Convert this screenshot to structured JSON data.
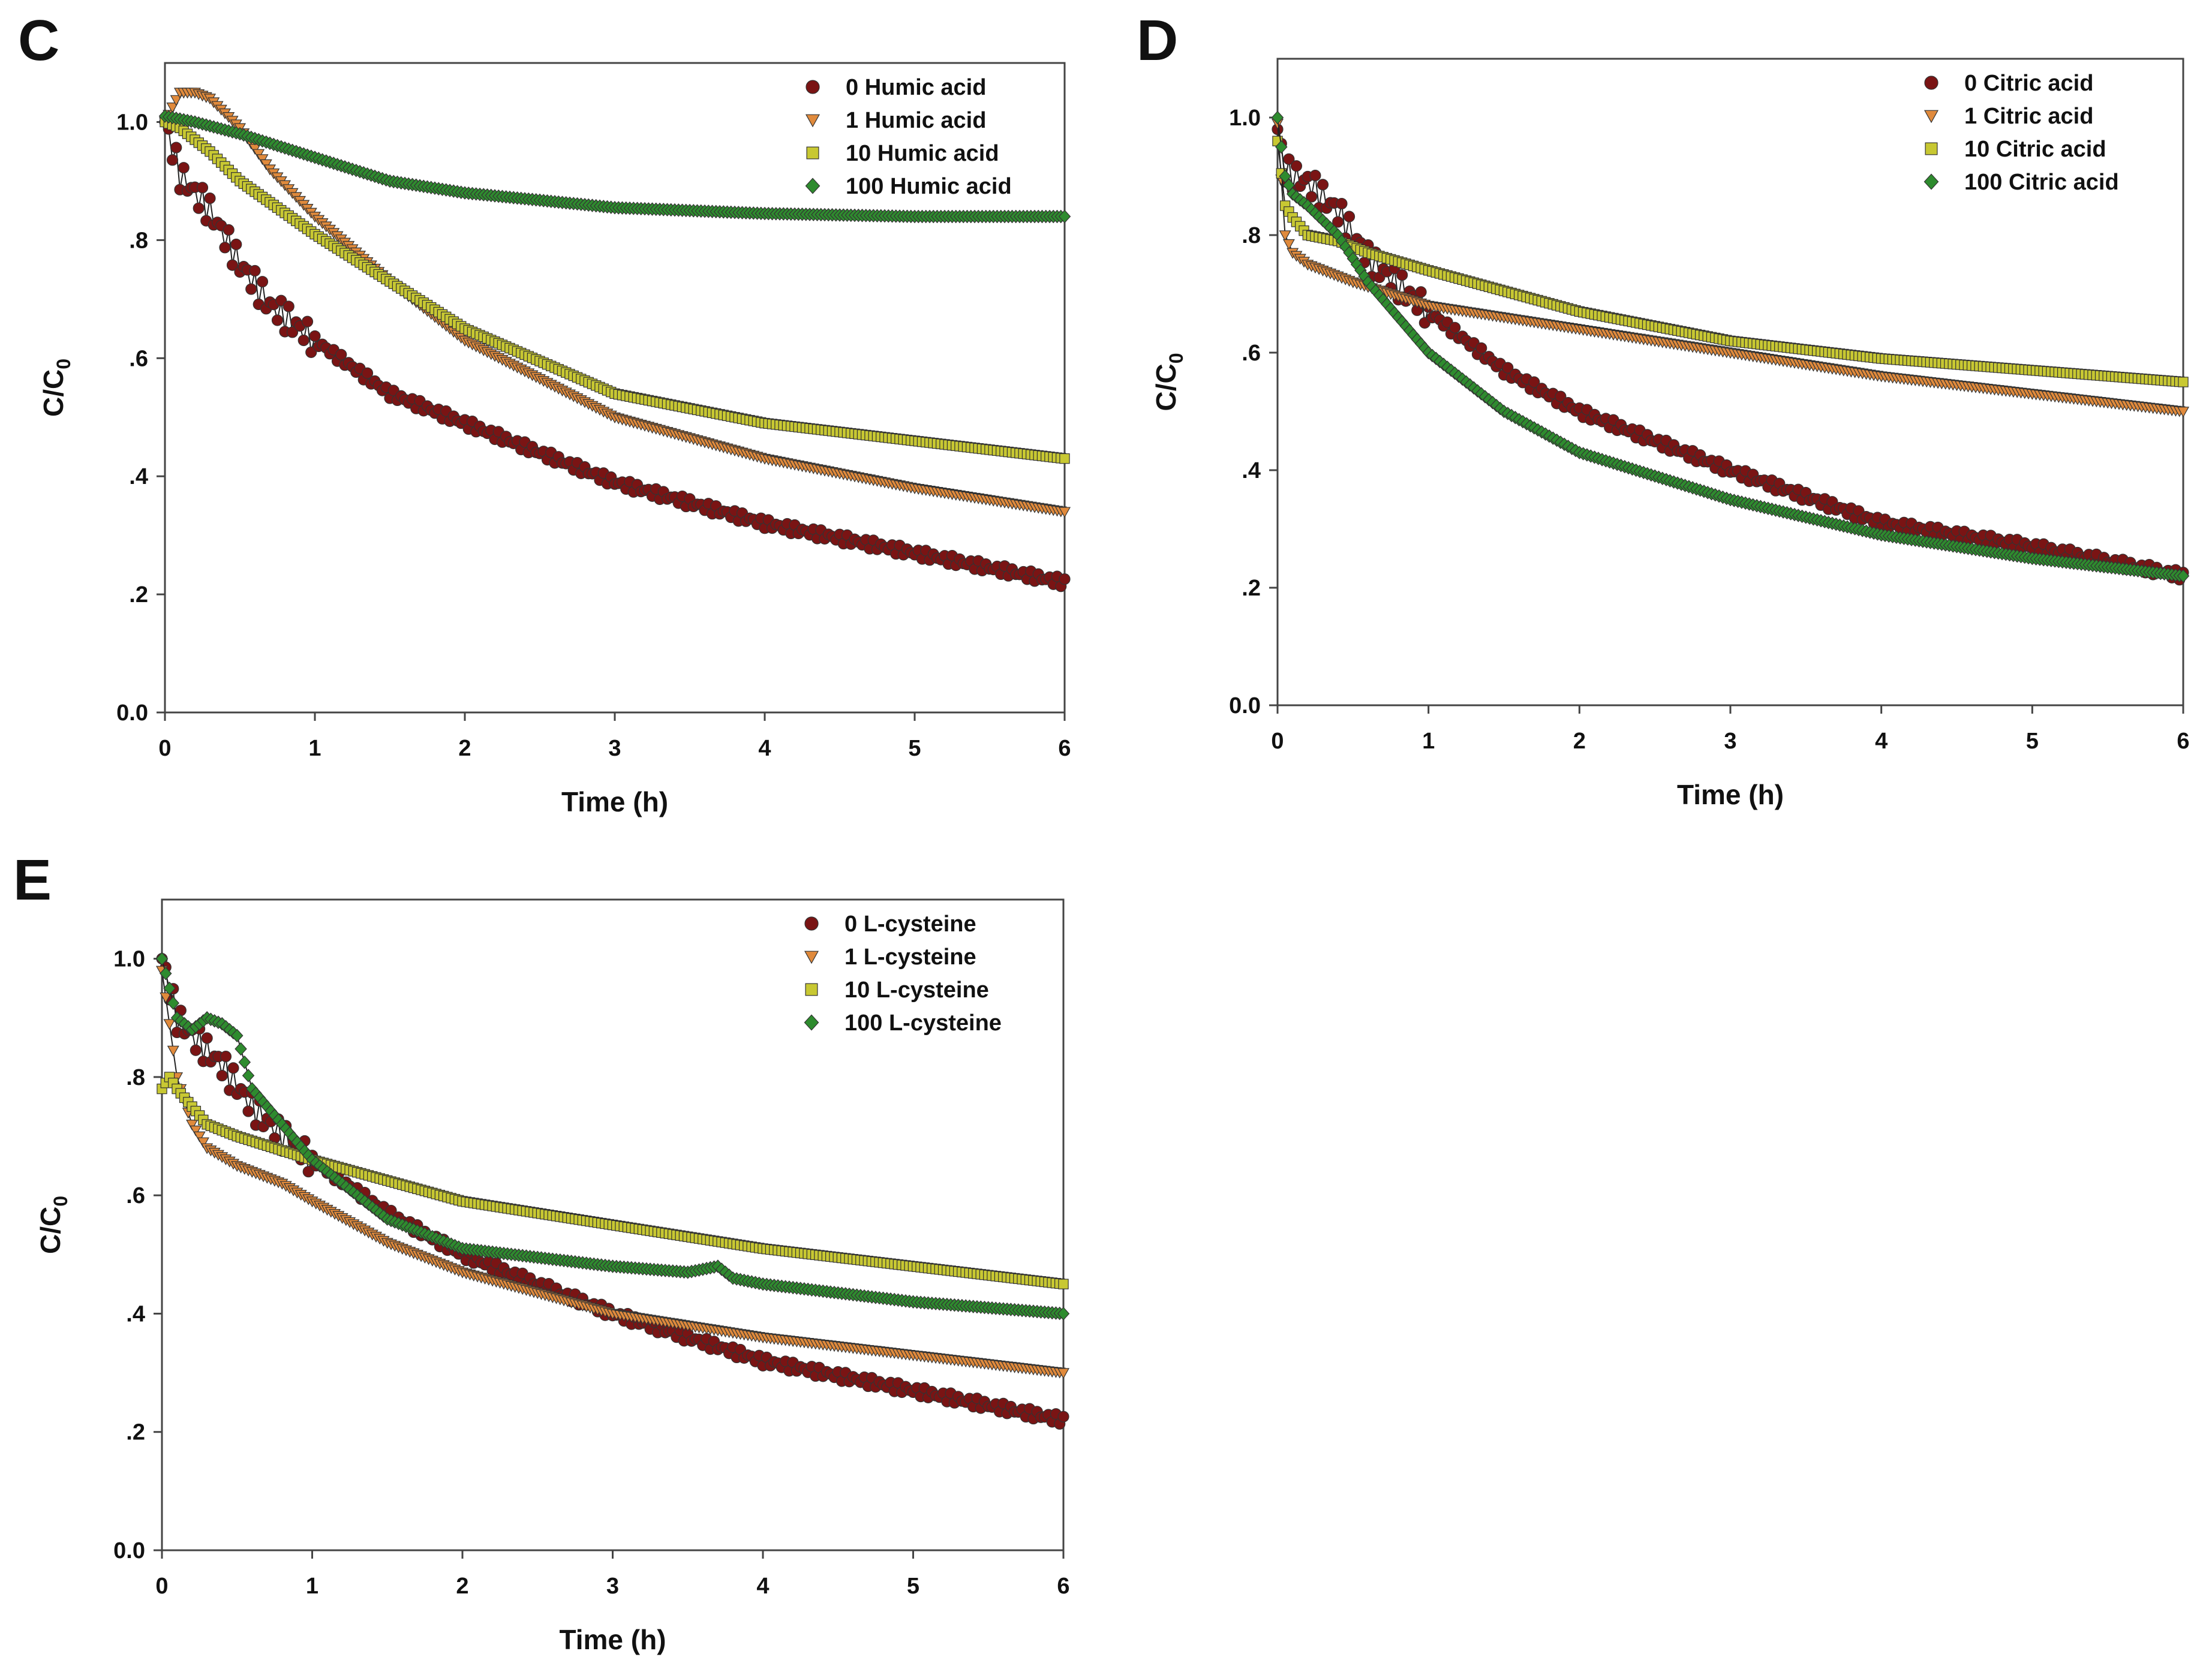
{
  "colors": {
    "s0": "#7a1414",
    "s1": "#e08a3c",
    "s10": "#c8c832",
    "s100": "#2e8b2e",
    "fit": "#222222",
    "axis": "#444444"
  },
  "chart_data": [
    {
      "type": "scatter",
      "panel": "C",
      "xlabel": "Time (h)",
      "ylabel": "C/C0",
      "xlim": [
        0,
        6
      ],
      "ylim": [
        0,
        1.1
      ],
      "x_ticks": [
        "0",
        "1",
        "2",
        "3",
        "4",
        "5",
        "6"
      ],
      "y_ticks": [
        "0.0",
        ".2",
        ".4",
        ".6",
        ".8",
        "1.0"
      ],
      "legend_position": "top-right",
      "series": [
        {
          "name": "0 Humic acid",
          "marker": "circle",
          "color": "s0",
          "x": [
            0,
            0.1,
            0.3,
            0.5,
            0.7,
            1,
            1.5,
            2,
            3,
            4,
            5,
            6
          ],
          "y": [
            1.0,
            0.91,
            0.85,
            0.76,
            0.69,
            0.63,
            0.54,
            0.49,
            0.39,
            0.32,
            0.27,
            0.22
          ]
        },
        {
          "name": "1 Humic acid",
          "marker": "triangle-down",
          "color": "s1",
          "x": [
            0,
            0.1,
            0.2,
            0.3,
            0.5,
            0.7,
            1,
            1.5,
            2,
            3,
            4,
            5,
            6
          ],
          "y": [
            1.0,
            1.05,
            1.05,
            1.04,
            0.99,
            0.92,
            0.84,
            0.73,
            0.63,
            0.5,
            0.43,
            0.38,
            0.34
          ]
        },
        {
          "name": "10 Humic acid",
          "marker": "square",
          "color": "s10",
          "x": [
            0,
            0.1,
            0.3,
            0.5,
            1,
            1.5,
            2,
            3,
            4,
            5,
            6
          ],
          "y": [
            1.0,
            0.99,
            0.95,
            0.9,
            0.81,
            0.73,
            0.65,
            0.54,
            0.49,
            0.46,
            0.43
          ]
        },
        {
          "name": "100 Humic acid",
          "marker": "diamond",
          "color": "s100",
          "x": [
            0,
            0.2,
            0.5,
            1,
            1.5,
            2,
            3,
            4,
            5,
            6
          ],
          "y": [
            1.01,
            1.0,
            0.98,
            0.94,
            0.9,
            0.88,
            0.855,
            0.845,
            0.84,
            0.84
          ]
        }
      ]
    },
    {
      "type": "scatter",
      "panel": "D",
      "xlabel": "Time (h)",
      "ylabel": "C/C0",
      "xlim": [
        0,
        6
      ],
      "ylim": [
        0,
        1.1
      ],
      "x_ticks": [
        "0",
        "1",
        "2",
        "3",
        "4",
        "5",
        "6"
      ],
      "y_ticks": [
        "0.0",
        ".2",
        ".4",
        ".6",
        ".8",
        "1.0"
      ],
      "legend_position": "top-right",
      "series": [
        {
          "name": "0 Citric acid",
          "marker": "circle",
          "color": "s0",
          "x": [
            0,
            0.05,
            0.1,
            0.2,
            0.4,
            0.6,
            1,
            1.5,
            2,
            3,
            4,
            5,
            6
          ],
          "y": [
            0.98,
            0.91,
            0.9,
            0.89,
            0.84,
            0.76,
            0.67,
            0.57,
            0.5,
            0.4,
            0.31,
            0.27,
            0.22
          ]
        },
        {
          "name": "1 Citric acid",
          "marker": "triangle-down",
          "color": "s1",
          "x": [
            0,
            0.05,
            0.1,
            0.2,
            0.3,
            0.5,
            1,
            2,
            3,
            4,
            5,
            6
          ],
          "y": [
            0.99,
            0.8,
            0.77,
            0.75,
            0.74,
            0.72,
            0.68,
            0.64,
            0.6,
            0.56,
            0.53,
            0.5
          ]
        },
        {
          "name": "10 Citric acid",
          "marker": "square",
          "color": "s10",
          "x": [
            0,
            0.05,
            0.1,
            0.2,
            0.4,
            0.6,
            1,
            2,
            3,
            4,
            5,
            6
          ],
          "y": [
            0.96,
            0.85,
            0.83,
            0.8,
            0.79,
            0.77,
            0.74,
            0.67,
            0.62,
            0.59,
            0.57,
            0.55
          ]
        },
        {
          "name": "100 Citric acid",
          "marker": "diamond",
          "color": "s100",
          "x": [
            0,
            0.05,
            0.1,
            0.2,
            0.4,
            0.6,
            1,
            1.5,
            2,
            3,
            4,
            5,
            6
          ],
          "y": [
            1.0,
            0.9,
            0.87,
            0.85,
            0.8,
            0.72,
            0.6,
            0.5,
            0.43,
            0.35,
            0.29,
            0.25,
            0.22
          ]
        }
      ]
    },
    {
      "type": "scatter",
      "panel": "E",
      "xlabel": "Time (h)",
      "ylabel": "C/C0",
      "xlim": [
        0,
        6
      ],
      "ylim": [
        0,
        1.1
      ],
      "x_ticks": [
        "0",
        "1",
        "2",
        "3",
        "4",
        "5",
        "6"
      ],
      "y_ticks": [
        "0.0",
        ".2",
        ".4",
        ".6",
        ".8",
        "1.0"
      ],
      "legend_position": "top-right",
      "series": [
        {
          "name": "0 L-cysteine",
          "marker": "circle",
          "color": "s0",
          "x": [
            0,
            0.1,
            0.2,
            0.4,
            0.6,
            0.8,
            1,
            1.5,
            2,
            3,
            4,
            5,
            6
          ],
          "y": [
            1.0,
            0.9,
            0.87,
            0.82,
            0.75,
            0.7,
            0.66,
            0.57,
            0.5,
            0.4,
            0.32,
            0.27,
            0.22
          ]
        },
        {
          "name": "1 L-cysteine",
          "marker": "triangle-down",
          "color": "s1",
          "x": [
            0,
            0.1,
            0.2,
            0.3,
            0.5,
            0.8,
            1,
            1.5,
            2,
            3,
            4,
            5,
            6
          ],
          "y": [
            0.98,
            0.8,
            0.72,
            0.68,
            0.65,
            0.62,
            0.59,
            0.52,
            0.47,
            0.4,
            0.36,
            0.33,
            0.3
          ]
        },
        {
          "name": "10 L-cysteine",
          "marker": "square",
          "color": "s10",
          "x": [
            0,
            0.05,
            0.1,
            0.2,
            0.3,
            0.5,
            1,
            2,
            3,
            4,
            5,
            6
          ],
          "y": [
            0.78,
            0.8,
            0.78,
            0.75,
            0.72,
            0.7,
            0.66,
            0.59,
            0.55,
            0.51,
            0.48,
            0.45
          ]
        },
        {
          "name": "100 L-cysteine",
          "marker": "diamond",
          "color": "s100",
          "x": [
            0,
            0.05,
            0.1,
            0.2,
            0.3,
            0.4,
            0.5,
            0.6,
            0.8,
            1,
            1.5,
            2,
            3,
            3.5,
            3.7,
            3.8,
            4,
            5,
            6
          ],
          "y": [
            1.0,
            0.95,
            0.9,
            0.88,
            0.9,
            0.89,
            0.87,
            0.78,
            0.72,
            0.66,
            0.56,
            0.51,
            0.48,
            0.47,
            0.48,
            0.46,
            0.45,
            0.42,
            0.4
          ]
        }
      ]
    }
  ]
}
